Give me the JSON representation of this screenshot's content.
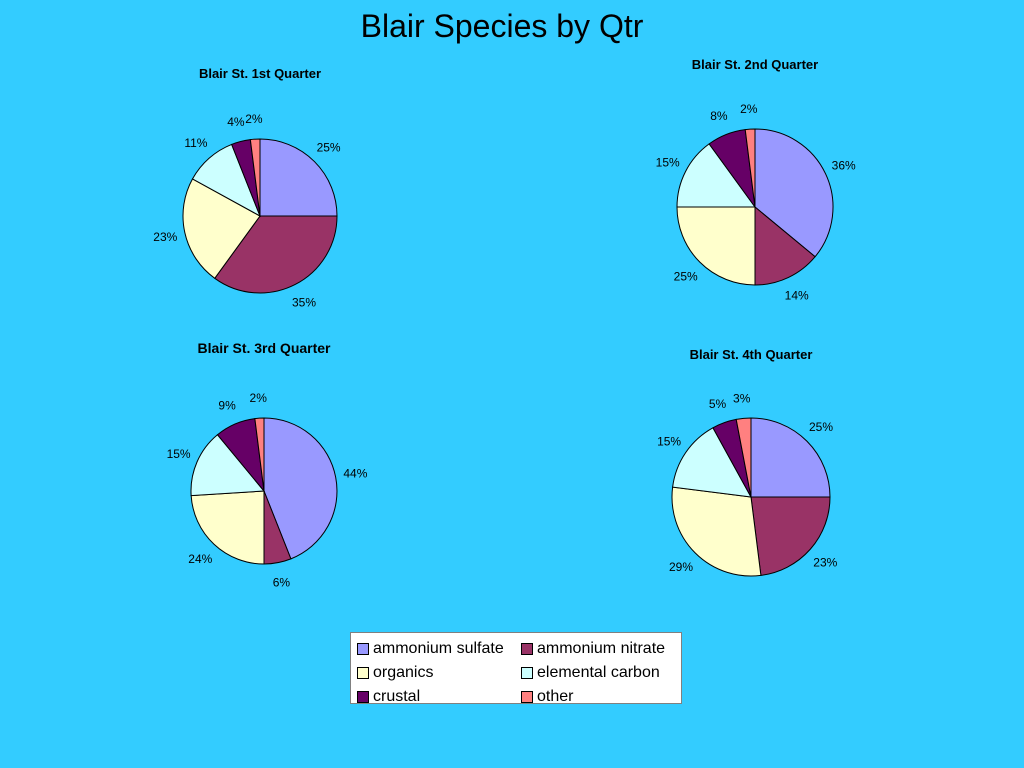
{
  "title": "Blair Species by Qtr",
  "colors": {
    "ammonium_sulfate": "#9999ff",
    "ammonium_nitrate": "#993366",
    "organics": "#ffffcc",
    "elemental_carbon": "#ccffff",
    "crustal": "#660066",
    "other": "#ff8080"
  },
  "chart_data": [
    {
      "type": "pie",
      "title": "Blair St. 1st Quarter",
      "categories": [
        "ammonium sulfate",
        "ammonium nitrate",
        "organics",
        "elemental carbon",
        "crustal",
        "other"
      ],
      "values": [
        25,
        35,
        23,
        11,
        4,
        2
      ],
      "labels": [
        "25%",
        "35%",
        "23%",
        "11%",
        "4%",
        "2%"
      ]
    },
    {
      "type": "pie",
      "title": "Blair St. 2nd Quarter",
      "categories": [
        "ammonium sulfate",
        "ammonium nitrate",
        "organics",
        "elemental carbon",
        "crustal",
        "other"
      ],
      "values": [
        36,
        14,
        25,
        15,
        8,
        2
      ],
      "labels": [
        "36%",
        "14%",
        "25%",
        "15%",
        "8%",
        "2%"
      ]
    },
    {
      "type": "pie",
      "title": "Blair St. 3rd Quarter",
      "categories": [
        "ammonium sulfate",
        "ammonium nitrate",
        "organics",
        "elemental carbon",
        "crustal",
        "other"
      ],
      "values": [
        44,
        6,
        24,
        15,
        9,
        2
      ],
      "labels": [
        "44%",
        "6%",
        "24%",
        "15%",
        "9%",
        "2%"
      ]
    },
    {
      "type": "pie",
      "title": "Blair St. 4th Quarter",
      "categories": [
        "ammonium sulfate",
        "ammonium nitrate",
        "organics",
        "elemental carbon",
        "crustal",
        "other"
      ],
      "values": [
        25,
        23,
        29,
        15,
        5,
        3
      ],
      "labels": [
        "25%",
        "23%",
        "29%",
        "15%",
        "5%",
        "3%"
      ]
    }
  ],
  "legend": {
    "items": [
      {
        "label": "ammonium sulfate",
        "color": "#9999ff"
      },
      {
        "label": "ammonium nitrate",
        "color": "#993366"
      },
      {
        "label": "organics",
        "color": "#ffffcc"
      },
      {
        "label": "elemental carbon",
        "color": "#ccffff"
      },
      {
        "label": "crustal",
        "color": "#660066"
      },
      {
        "label": "other",
        "color": "#ff8080"
      }
    ]
  }
}
